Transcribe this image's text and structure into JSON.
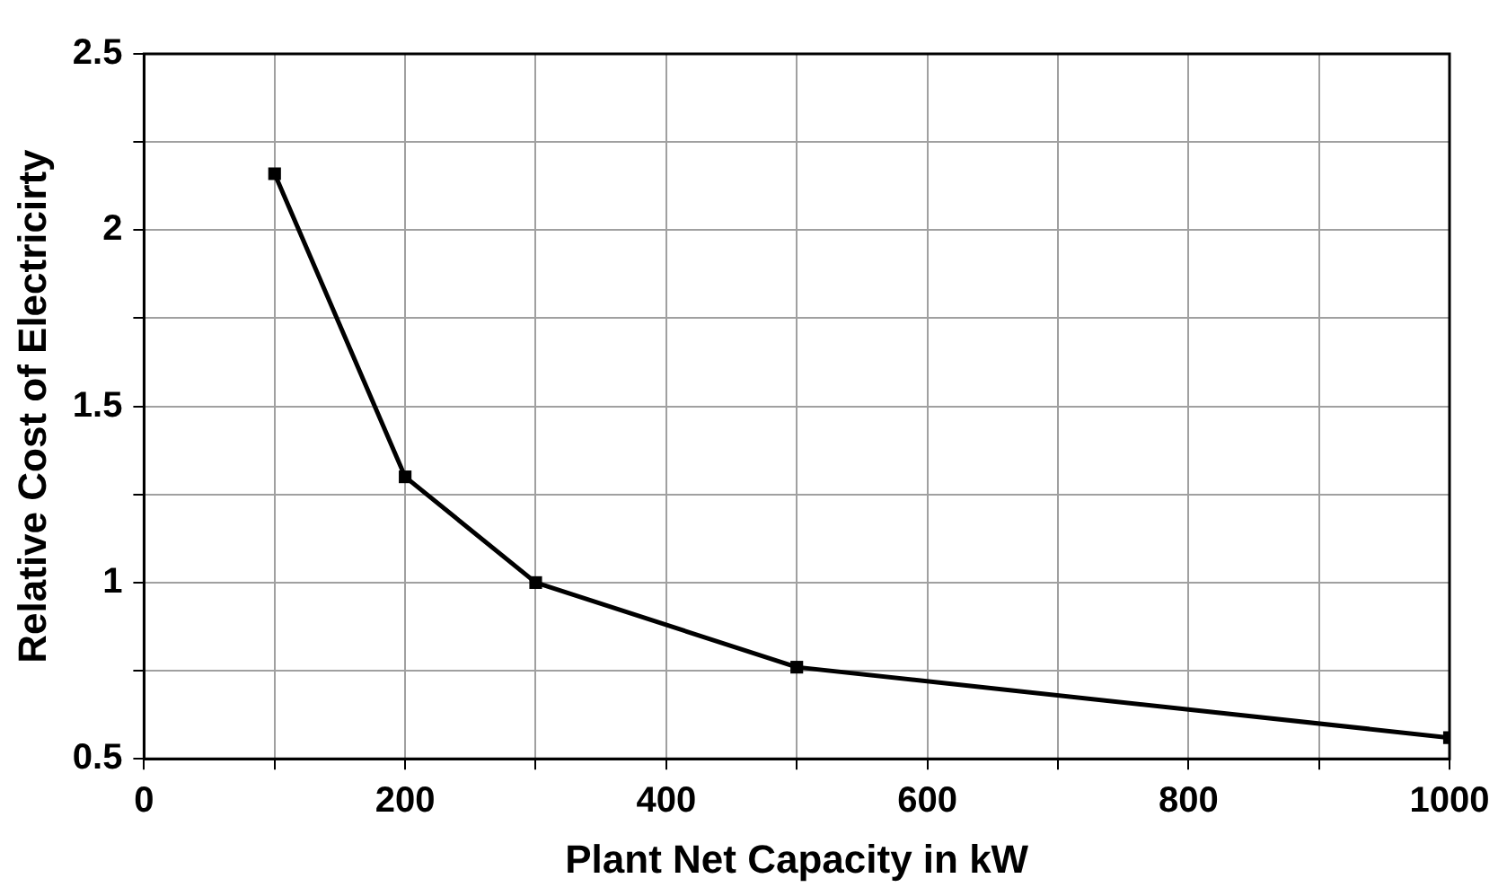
{
  "chart_data": {
    "type": "line",
    "xlabel": "Plant Net Capacity in kW",
    "ylabel": "Relative Cost of Electricirty",
    "x": [
      100,
      200,
      300,
      500,
      1000
    ],
    "series": [
      {
        "color": "#000000",
        "values": [
          2.16,
          1.3,
          1.0,
          0.76,
          0.56
        ]
      }
    ],
    "xlim": [
      0,
      1000
    ],
    "xticks": [
      0,
      {
        "value": 100,
        "label": null
      },
      200,
      {
        "value": 300,
        "label": null
      },
      400,
      {
        "value": 500,
        "label": null
      },
      600,
      {
        "value": 700,
        "label": null
      },
      800,
      {
        "value": 900,
        "label": null
      },
      1000
    ],
    "ylim": [
      0.5,
      2.5
    ],
    "yticks": [
      0.5,
      {
        "value": 0.75,
        "label": null
      },
      1,
      {
        "value": 1.25,
        "label": null
      },
      1.5,
      {
        "value": 1.75,
        "label": null
      },
      2,
      {
        "value": 2.25,
        "label": null
      },
      2.5
    ],
    "grid": true,
    "legend": false,
    "marker": "square",
    "line_style": "solid"
  }
}
